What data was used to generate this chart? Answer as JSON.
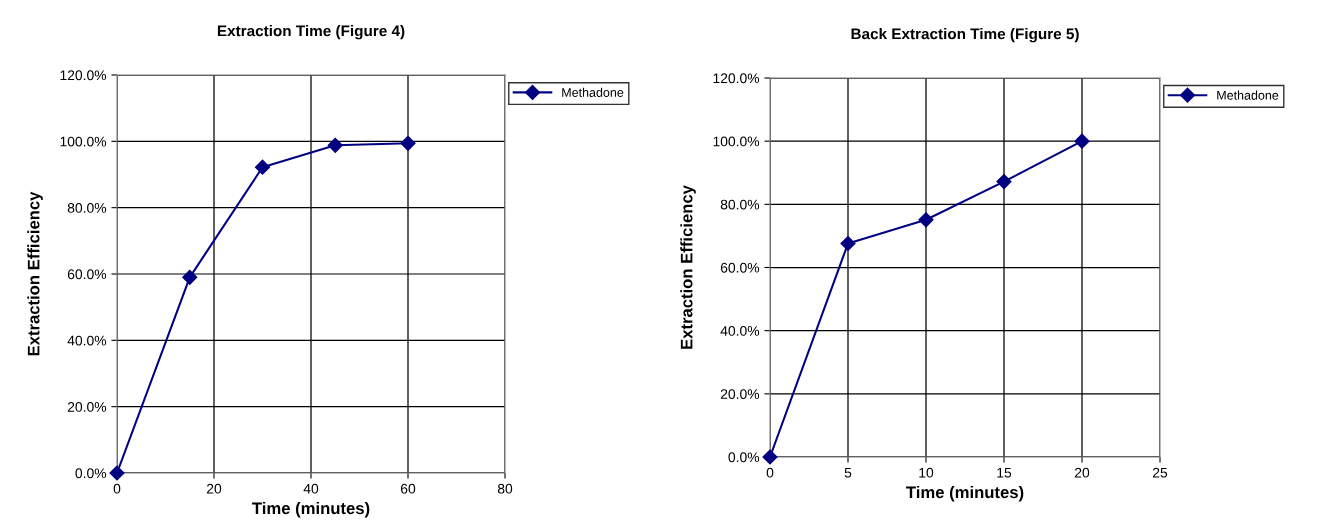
{
  "chart_data": [
    {
      "type": "line",
      "title": "Extraction Time (Figure 4)",
      "xlabel": "Time (minutes)",
      "ylabel": "Extraction Efficiency",
      "x": [
        0,
        15,
        30,
        45,
        60
      ],
      "series": [
        {
          "name": "Methadone",
          "color": "#000080",
          "values": [
            0,
            59.0,
            92.2,
            98.8,
            99.4
          ]
        }
      ],
      "xlim": [
        0,
        80
      ],
      "xticks": [
        0,
        20,
        40,
        60,
        80
      ],
      "ylim": [
        0,
        120
      ],
      "yticks": [
        {
          "value": 0,
          "label": "0.0%"
        },
        {
          "value": 20,
          "label": "20.0%"
        },
        {
          "value": 40,
          "label": "40.0%"
        },
        {
          "value": 60,
          "label": "60.0%"
        },
        {
          "value": 80,
          "label": "80.0%"
        },
        {
          "value": 100,
          "label": "100.0%"
        },
        {
          "value": 120,
          "label": "120.0%"
        }
      ],
      "grid": true,
      "legend": "top right",
      "marker": "diamond",
      "line_style": "solid"
    },
    {
      "type": "line",
      "title": "Back Extraction Time (Figure 5)",
      "xlabel": "Time (minutes)",
      "ylabel": "Extraction Efficiency",
      "x": [
        0,
        5,
        10,
        15,
        20
      ],
      "series": [
        {
          "name": "Methadone",
          "color": "#000080",
          "values": [
            0,
            67.6,
            75.1,
            87.2,
            100.0
          ]
        }
      ],
      "xlim": [
        0,
        25
      ],
      "xticks": [
        0,
        5,
        10,
        15,
        20,
        25
      ],
      "ylim": [
        0,
        120
      ],
      "yticks": [
        {
          "value": 0,
          "label": "0.0%"
        },
        {
          "value": 20,
          "label": "20.0%"
        },
        {
          "value": 40,
          "label": "40.0%"
        },
        {
          "value": 60,
          "label": "60.0%"
        },
        {
          "value": 80,
          "label": "80.0%"
        },
        {
          "value": 100,
          "label": "100.0%"
        },
        {
          "value": 120,
          "label": "120.0%"
        }
      ],
      "grid": true,
      "legend": "top right",
      "marker": "diamond",
      "line_style": "solid"
    }
  ]
}
